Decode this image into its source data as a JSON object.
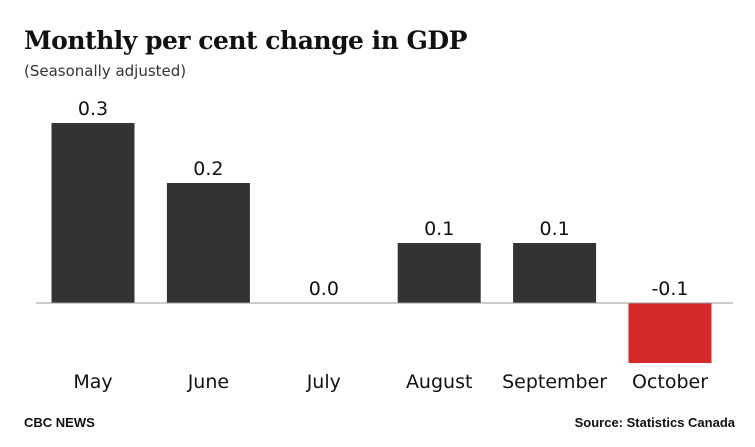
{
  "chart_data": {
    "type": "bar",
    "title": "Monthly per cent change in GDP",
    "subtitle": "(Seasonally adjusted)",
    "categories": [
      "May",
      "June",
      "July",
      "August",
      "September",
      "October"
    ],
    "values": [
      0.3,
      0.2,
      0.0,
      0.1,
      0.1,
      -0.1
    ],
    "data_labels": [
      "0.3",
      "0.2",
      "0.0",
      "0.1",
      "0.1",
      "-0.1"
    ],
    "xlabel": "",
    "ylabel": "",
    "ylim": [
      -0.1,
      0.3
    ],
    "grid": false,
    "colors": {
      "positive": "#333333",
      "negative": "#d42a2a",
      "baseline": "#999999"
    }
  },
  "footer": {
    "brand": "CBC NEWS",
    "source": "Source: Statistics Canada"
  }
}
